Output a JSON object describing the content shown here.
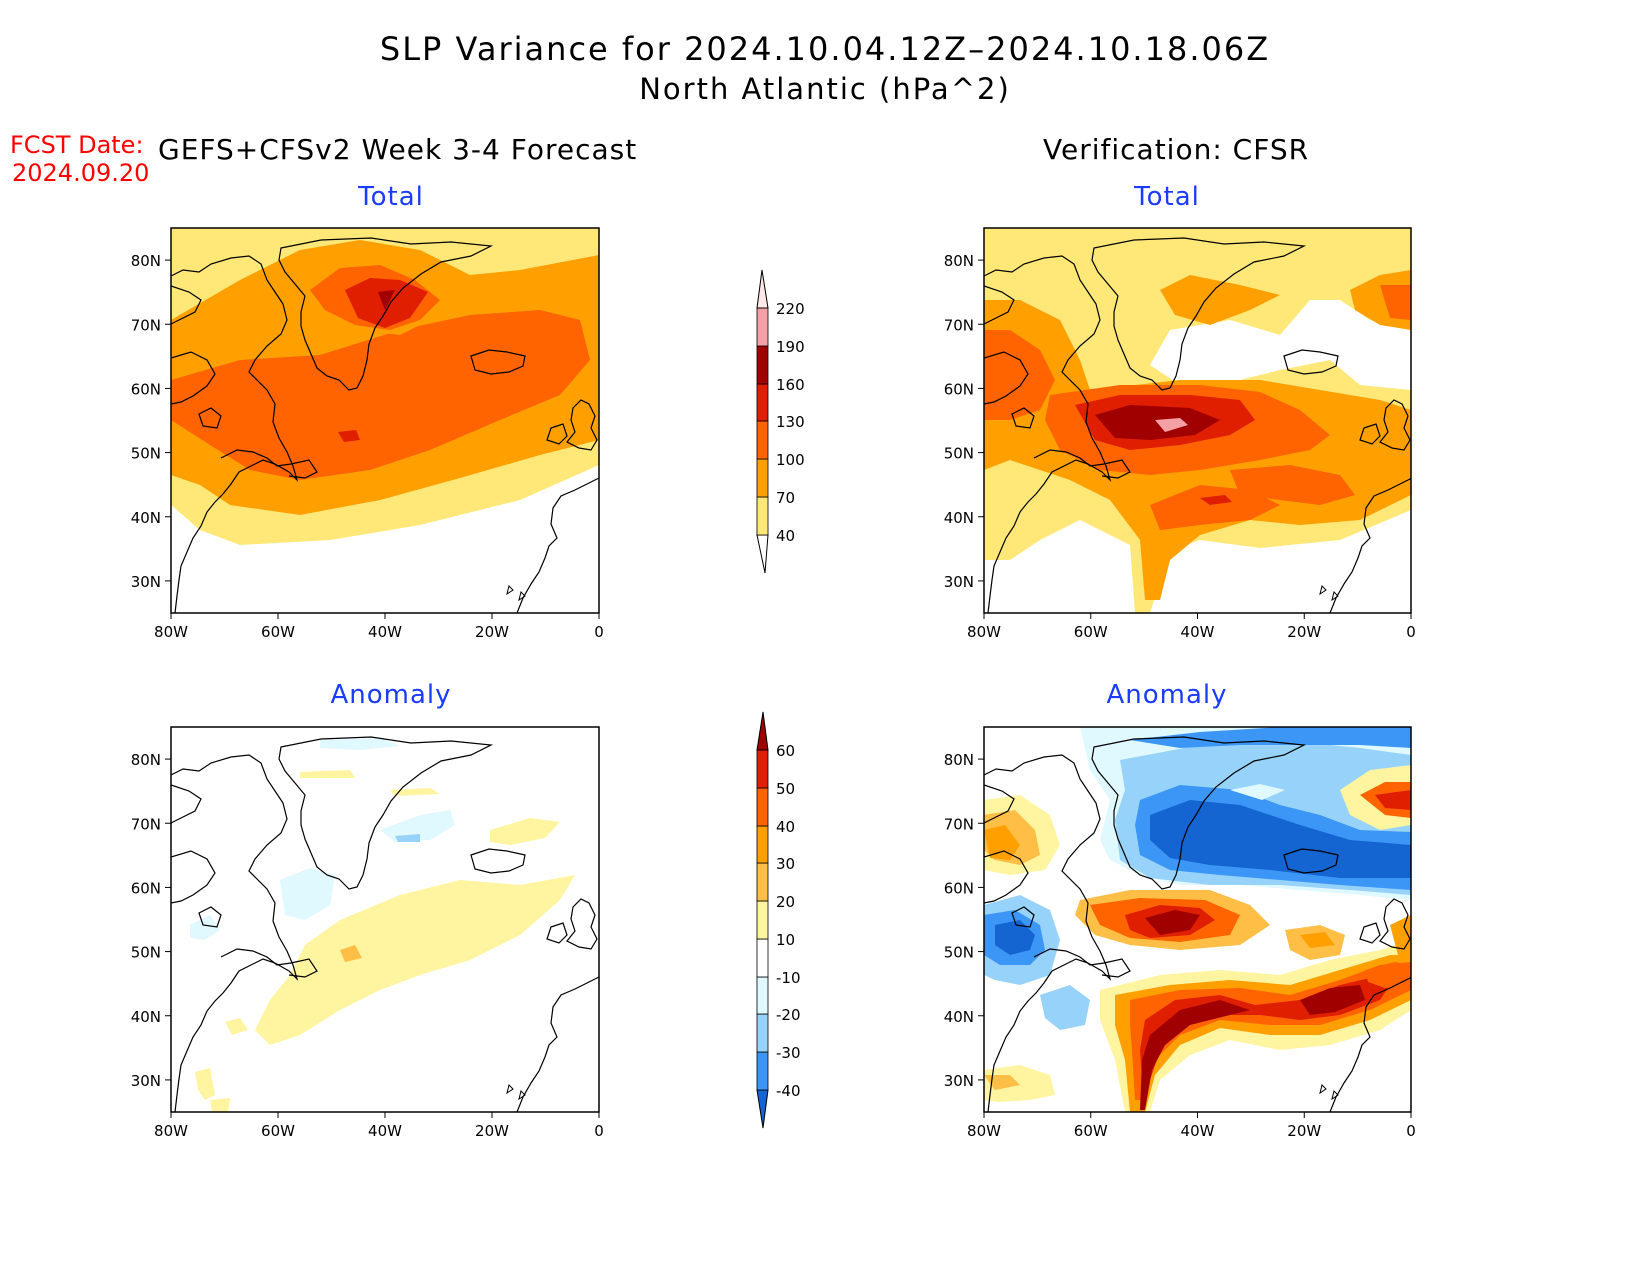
{
  "header": {
    "title_line1": "SLP Variance for 2024.10.04.12Z–2024.10.18.06Z",
    "title_line2": "North Atlantic (hPa^2)",
    "fcst_label": "FCST Date:",
    "fcst_date": "2024.09.20",
    "left_column_title": "GEFS+CFSv2 Week 3-4 Forecast",
    "right_column_title": "Verification: CFSR"
  },
  "panels": {
    "top_left_label": "Total",
    "top_right_label": "Total",
    "bottom_left_label": "Anomaly",
    "bottom_right_label": "Anomaly"
  },
  "map_axes": {
    "lat_labels": [
      "80N",
      "70N",
      "60N",
      "50N",
      "40N",
      "30N"
    ],
    "lon_labels": [
      "80W",
      "60W",
      "40W",
      "20W",
      "0"
    ],
    "lat_values": [
      80,
      70,
      60,
      50,
      40,
      30
    ],
    "lon_values": [
      -80,
      -60,
      -40,
      -20,
      0
    ],
    "lat_range": [
      25,
      85
    ],
    "lon_range": [
      -80,
      0
    ]
  },
  "colorbar_total": {
    "labels": [
      "220",
      "190",
      "160",
      "130",
      "100",
      "70",
      "40"
    ],
    "colors": [
      "#ffe8e8",
      "#f4a0a4",
      "#a00000",
      "#e01e00",
      "#ff6400",
      "#ffa000",
      "#ffe878"
    ]
  },
  "colorbar_anomaly": {
    "labels": [
      "60",
      "50",
      "40",
      "30",
      "20",
      "10",
      "-10",
      "-20",
      "-30",
      "-40"
    ],
    "colors": [
      "#a00000",
      "#e01e00",
      "#ff6400",
      "#ffa000",
      "#ffbe46",
      "#fff4a0",
      "#ffffff",
      "#e0f8ff",
      "#96d2fa",
      "#3c96f5",
      "#1464d2"
    ]
  }
}
